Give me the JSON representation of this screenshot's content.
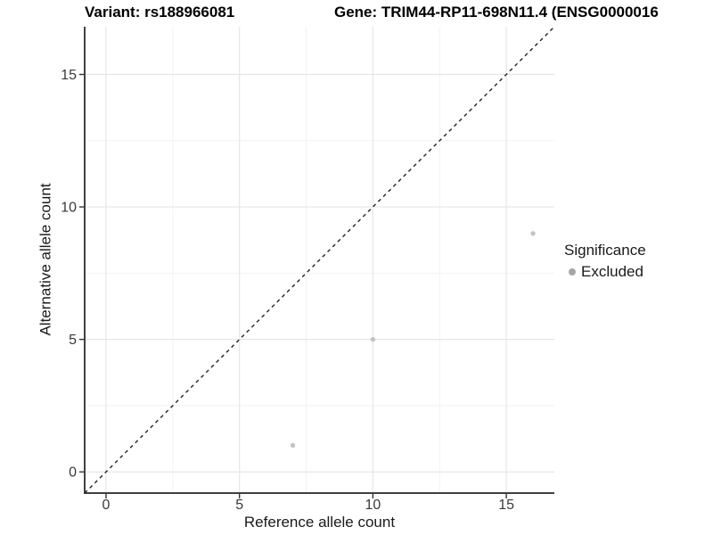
{
  "titles": {
    "variant": "Variant: rs188966081",
    "gene": "Gene: TRIM44-RP11-698N11.4 (ENSG0000016"
  },
  "chart_data": {
    "type": "scatter",
    "xlabel": "Reference allele count",
    "ylabel": "Alternative allele count",
    "xlim": [
      -0.8,
      16.8
    ],
    "ylim": [
      -0.8,
      16.8
    ],
    "x_ticks": [
      0,
      5,
      10,
      15
    ],
    "y_ticks": [
      0,
      5,
      10,
      15
    ],
    "x_minor_ticks": [
      2.5,
      7.5,
      12.5
    ],
    "y_minor_ticks": [
      2.5,
      7.5,
      12.5
    ],
    "grid": true,
    "reference_line": {
      "type": "identity",
      "intercept": 0,
      "slope": 1,
      "style": "dashed"
    },
    "series": [
      {
        "name": "Excluded",
        "color": "#c4c4c4",
        "points": [
          [
            7,
            1
          ],
          [
            10,
            5
          ],
          [
            16,
            9
          ]
        ]
      }
    ],
    "legend": {
      "title": "Significance",
      "position": "right",
      "entries": [
        {
          "label": "Excluded",
          "color": "#a6a6a6"
        }
      ]
    },
    "style": {
      "grid_major": "#e6e6e6",
      "grid_minor": "#f2f2f2",
      "axis_line": "#404040",
      "tick_color": "#333333",
      "tick_label_color": "#3a3a3a",
      "dashed_line_color": "#222222"
    }
  }
}
